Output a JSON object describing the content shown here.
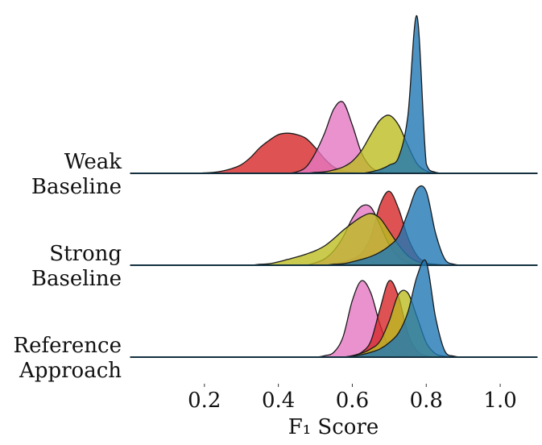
{
  "chart_data": {
    "type": "ridgeline",
    "xlabel": "F₁ Score",
    "xlim": [
      0,
      1.1
    ],
    "xticks": [
      0.2,
      0.4,
      0.6,
      0.8,
      {
        "value": 1,
        "label": "1.0"
      }
    ],
    "x": [
      0.15,
      0.175,
      0.2,
      0.225,
      0.25,
      0.275,
      0.3,
      0.325,
      0.35,
      0.375,
      0.4,
      0.425,
      0.45,
      0.475,
      0.5,
      0.525,
      0.55,
      0.575,
      0.6,
      0.625,
      0.65,
      0.675,
      0.7,
      0.725,
      0.75,
      0.775,
      0.8,
      0.825,
      0.85,
      0.875,
      0.9,
      0.925,
      0.95
    ],
    "ridges": [
      {
        "label": [
          "Weak",
          "Baseline"
        ],
        "series": [
          {
            "color": "#d62728",
            "values": [
              0,
              0,
              0.1,
              0.2,
              0.5,
              1,
              1.8,
              3.3,
              5.3,
              6.8,
              8,
              8.3,
              8,
              7.2,
              5.3,
              3,
              1.3,
              0.5,
              0.2,
              0.1,
              0,
              0,
              0,
              0,
              0,
              0,
              0,
              0,
              0,
              0,
              0,
              0,
              0
            ]
          },
          {
            "color": "#e377c2",
            "values": [
              0,
              0,
              0,
              0,
              0,
              0,
              0,
              0,
              0,
              0,
              0,
              0,
              0.3,
              1.3,
              4.2,
              8.3,
              13.3,
              14.7,
              10,
              4.2,
              1.3,
              0.3,
              0,
              0,
              0,
              0,
              0,
              0,
              0,
              0,
              0,
              0,
              0
            ]
          },
          {
            "color": "#bcbd22",
            "values": [
              0,
              0,
              0,
              0,
              0,
              0,
              0,
              0,
              0,
              0,
              0,
              0,
              0,
              0,
              0.2,
              0.3,
              0.7,
              1.3,
              2.5,
              4.7,
              8,
              11,
              12,
              10,
              5.8,
              2,
              0.5,
              0,
              0,
              0,
              0,
              0,
              0
            ]
          },
          {
            "color": "#1f77b4",
            "values": [
              0,
              0,
              0,
              0,
              0,
              0,
              0,
              0,
              0,
              0,
              0,
              0,
              0,
              0,
              0,
              0,
              0,
              0,
              0,
              0,
              0.3,
              0.8,
              1.7,
              3.3,
              11.7,
              32.5,
              2,
              0.2,
              0,
              0,
              0,
              0,
              0
            ]
          }
        ]
      },
      {
        "label": [
          "Strong",
          "Baseline"
        ],
        "series": [
          {
            "color": "#d62728",
            "values": [
              0,
              0,
              0,
              0,
              0,
              0,
              0,
              0,
              0,
              0,
              0,
              0,
              0,
              0,
              0,
              0,
              0.3,
              0.7,
              1.3,
              2.5,
              5.8,
              12.5,
              15.3,
              11.7,
              5.8,
              2,
              0.5,
              0.2,
              0,
              0,
              0,
              0,
              0
            ]
          },
          {
            "color": "#e377c2",
            "values": [
              0,
              0,
              0,
              0,
              0,
              0,
              0,
              0,
              0,
              0,
              0,
              0,
              0,
              0,
              0.5,
              1.3,
              3,
              5.8,
              9.7,
              12.2,
              12,
              8.3,
              4.2,
              1.7,
              0.5,
              0.2,
              0,
              0,
              0,
              0,
              0,
              0,
              0
            ]
          },
          {
            "color": "#bcbd22",
            "values": [
              0,
              0,
              0,
              0,
              0,
              0,
              0,
              0,
              0.2,
              0.3,
              0.7,
              1.2,
              1.7,
              2.3,
              3,
              4,
              5.5,
              7.2,
              8.7,
              10,
              10.7,
              9.7,
              7,
              4.2,
              2,
              0.8,
              0.3,
              0.2,
              0,
              0,
              0,
              0,
              0
            ]
          },
          {
            "color": "#1f77b4",
            "values": [
              0,
              0,
              0,
              0,
              0,
              0,
              0,
              0,
              0,
              0,
              0,
              0,
              0,
              0,
              0,
              0,
              0.2,
              0.3,
              0.7,
              1.2,
              1.8,
              2.7,
              4,
              6,
              10.8,
              15.8,
              15.3,
              6.7,
              1.3,
              0.2,
              0,
              0,
              0
            ]
          }
        ]
      },
      {
        "label": [
          "Reference",
          "Approach"
        ],
        "series": [
          {
            "color": "#e377c2",
            "values": [
              0,
              0,
              0,
              0,
              0,
              0,
              0,
              0,
              0,
              0,
              0,
              0,
              0,
              0,
              0,
              0.3,
              1,
              4.2,
              11.7,
              15.8,
              13.3,
              6.7,
              2,
              0.5,
              0.2,
              0,
              0,
              0,
              0,
              0,
              0,
              0,
              0
            ]
          },
          {
            "color": "#d62728",
            "values": [
              0,
              0,
              0,
              0,
              0,
              0,
              0,
              0,
              0,
              0,
              0,
              0,
              0,
              0,
              0,
              0,
              0,
              0,
              0.3,
              1,
              3.3,
              10,
              15.8,
              12.5,
              5,
              1.3,
              0.3,
              0,
              0,
              0,
              0,
              0,
              0
            ]
          },
          {
            "color": "#bcbd22",
            "values": [
              0,
              0,
              0,
              0,
              0,
              0,
              0,
              0,
              0,
              0,
              0,
              0,
              0,
              0,
              0,
              0,
              0,
              0,
              0.3,
              0.8,
              1.7,
              3.3,
              7.5,
              13,
              13.3,
              8.3,
              3,
              0.7,
              0.2,
              0,
              0,
              0,
              0
            ]
          },
          {
            "color": "#1f77b4",
            "values": [
              0,
              0,
              0,
              0,
              0,
              0,
              0,
              0,
              0,
              0,
              0,
              0,
              0,
              0,
              0,
              0,
              0,
              0,
              0.2,
              0.5,
              1,
              1.7,
              3,
              5,
              9.2,
              16.7,
              19.7,
              8.3,
              1.3,
              0.2,
              0,
              0,
              0
            ]
          }
        ]
      }
    ]
  }
}
